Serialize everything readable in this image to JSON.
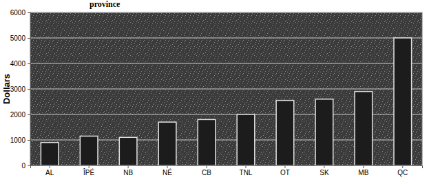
{
  "chart_data": {
    "type": "bar",
    "title": "province",
    "y_label": "Dollars",
    "categories": [
      "AL",
      "ÎPÉ",
      "NB",
      "NÉ",
      "CB",
      "TNL",
      "OT",
      "SK",
      "MB",
      "QC"
    ],
    "values": [
      900,
      1150,
      1100,
      1700,
      1800,
      2000,
      2550,
      2600,
      2900,
      5000
    ],
    "color": "#1c1c1c",
    "ylim": [
      0,
      6000
    ],
    "yticks": [
      0,
      1000,
      2000,
      3000,
      4000,
      5000,
      6000
    ],
    "grid": true
  }
}
